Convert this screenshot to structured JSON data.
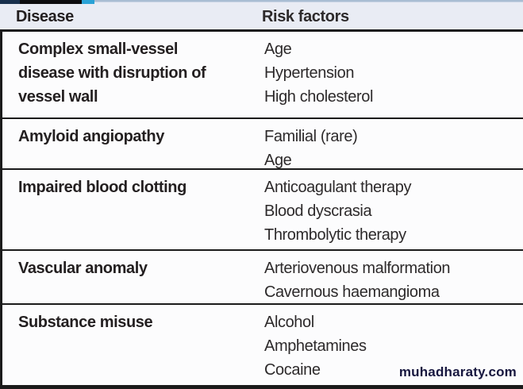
{
  "table": {
    "headers": [
      "Disease",
      "Risk factors"
    ],
    "header_bg": "#e9ecf4",
    "border_color": "#1b1b1b",
    "rows": [
      {
        "disease": "Complex small-vessel disease with disruption of vessel wall",
        "risk_factors": [
          "Age",
          "Hypertension",
          "High cholesterol"
        ]
      },
      {
        "disease": "Amyloid angiopathy",
        "risk_factors": [
          "Familial (rare)",
          "Age"
        ]
      },
      {
        "disease": "Impaired blood clotting",
        "risk_factors": [
          "Anticoagulant therapy",
          "Blood dyscrasia",
          "Thrombolytic therapy"
        ]
      },
      {
        "disease": "Vascular anomaly",
        "risk_factors": [
          "Arteriovenous malformation",
          "Cavernous haemangioma"
        ]
      },
      {
        "disease": "Substance misuse",
        "risk_factors": [
          "Alcohol",
          "Amphetamines",
          "Cocaine"
        ]
      }
    ]
  },
  "top_strip_colors": {
    "navy": "#18304d",
    "black": "#0d0d0f",
    "teal": "#2aa2d6",
    "rest": "#a9bdd3"
  },
  "watermark": {
    "text": "muhadharaty.com",
    "color": "#17173f"
  }
}
